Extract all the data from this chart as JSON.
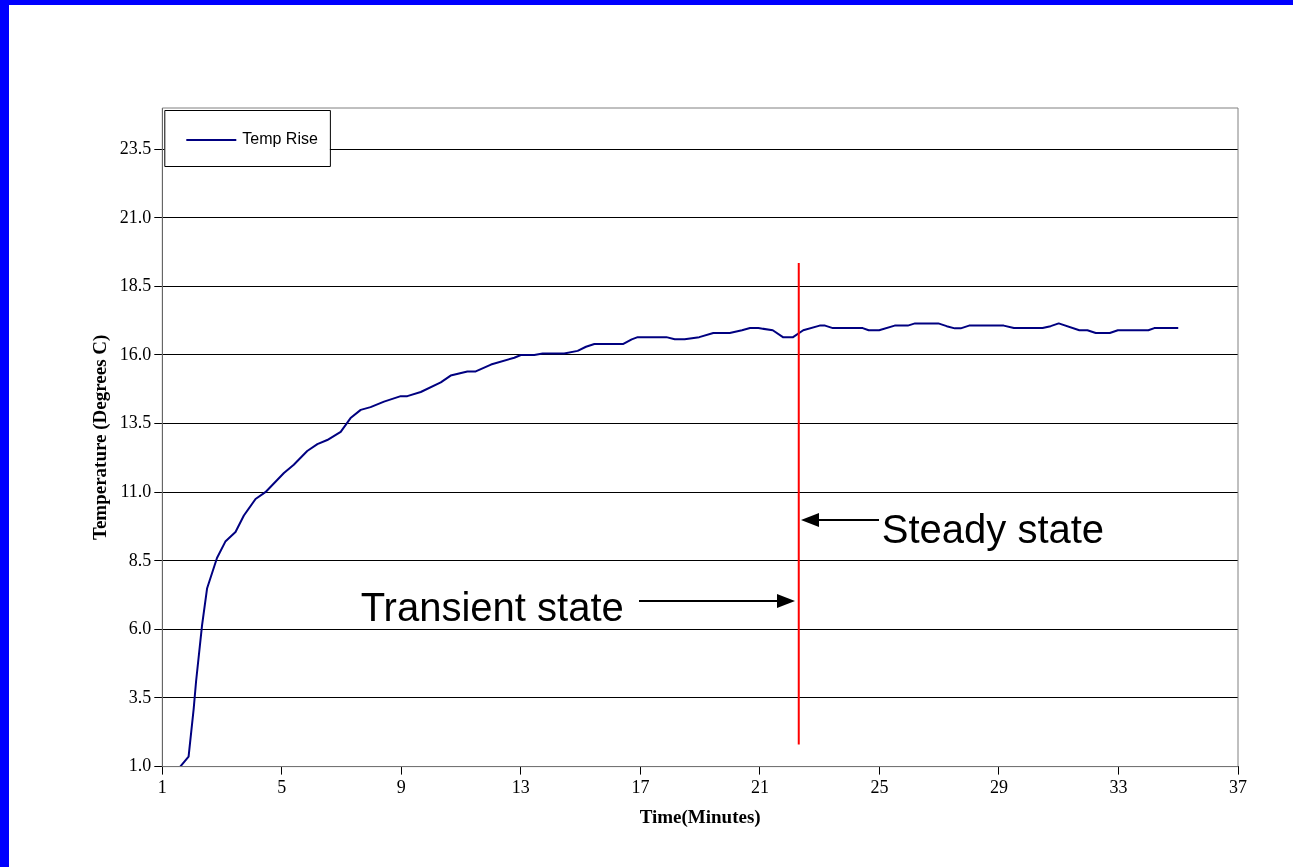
{
  "chart_data": {
    "type": "line",
    "xlabel": "Time(Minutes)",
    "ylabel": "Temperature (Degrees C)",
    "xlim": [
      1,
      37
    ],
    "xticks": [
      1,
      5,
      9,
      13,
      17,
      21,
      25,
      29,
      33,
      37
    ],
    "ylim": [
      1,
      25
    ],
    "yticks": [
      {
        "value": 1,
        "label": "1.0"
      },
      3.5,
      {
        "value": 6,
        "label": "6.0"
      },
      8.5,
      {
        "value": 11,
        "label": "11.0"
      },
      13.5,
      {
        "value": 16,
        "label": "16.0"
      },
      18.5,
      {
        "value": 21,
        "label": "21.0"
      },
      23.5
    ],
    "grid": "y",
    "legend": "top left",
    "marker": "none",
    "line_style": "solid",
    "series": [
      {
        "name": "Temp Rise",
        "color": "#000080",
        "x": [
          1.6,
          1.88,
          2.05,
          2.13,
          2.33,
          2.5,
          2.83,
          3.11,
          3.45,
          3.73,
          4.12,
          4.45,
          5.07,
          5.4,
          5.85,
          6.19,
          6.52,
          6.97,
          7.3,
          7.64,
          7.97,
          8.42,
          8.98,
          9.2,
          9.65,
          10.32,
          10.65,
          11.21,
          11.49,
          12.0,
          12.78,
          13.0,
          13.45,
          13.73,
          14.45,
          14.9,
          15.18,
          15.46,
          16.43,
          16.71,
          16.91,
          17.87,
          18.15,
          18.48,
          18.97,
          19.44,
          19.99,
          20.4,
          20.67,
          20.95,
          21.43,
          21.77,
          22.11,
          22.45,
          23.0,
          23.18,
          23.44,
          24.44,
          24.64,
          24.99,
          25.51,
          25.95,
          26.19,
          26.97,
          27.25,
          27.52,
          27.72,
          28.0,
          29.16,
          29.5,
          30.46,
          30.73,
          31.0,
          31.69,
          31.96,
          32.24,
          32.71,
          32.98,
          34.0,
          34.2,
          35.0
        ],
        "values": [
          1.0,
          1.36,
          3.1,
          4.1,
          6.15,
          7.5,
          8.6,
          9.2,
          9.55,
          10.15,
          10.75,
          11.0,
          11.7,
          12.0,
          12.5,
          12.75,
          12.9,
          13.2,
          13.7,
          14.0,
          14.1,
          14.3,
          14.5,
          14.5,
          14.65,
          15.0,
          15.25,
          15.4,
          15.4,
          15.65,
          15.9,
          16.0,
          16.0,
          16.05,
          16.05,
          16.15,
          16.3,
          16.4,
          16.4,
          16.57,
          16.65,
          16.65,
          16.57,
          16.57,
          16.65,
          16.8,
          16.8,
          16.9,
          16.98,
          16.98,
          16.9,
          16.65,
          16.65,
          16.9,
          17.07,
          17.07,
          16.98,
          16.98,
          16.9,
          16.9,
          17.07,
          17.07,
          17.15,
          17.15,
          17.05,
          16.97,
          16.97,
          17.07,
          17.07,
          16.98,
          16.98,
          17.05,
          17.15,
          16.9,
          16.9,
          16.8,
          16.8,
          16.9,
          16.9,
          16.98,
          16.98
        ]
      }
    ],
    "ref_lines": [
      {
        "axis": "x",
        "value": 22.3,
        "color": "#ff0000"
      }
    ],
    "annotations": [
      "Steady state",
      "Transient state"
    ]
  }
}
